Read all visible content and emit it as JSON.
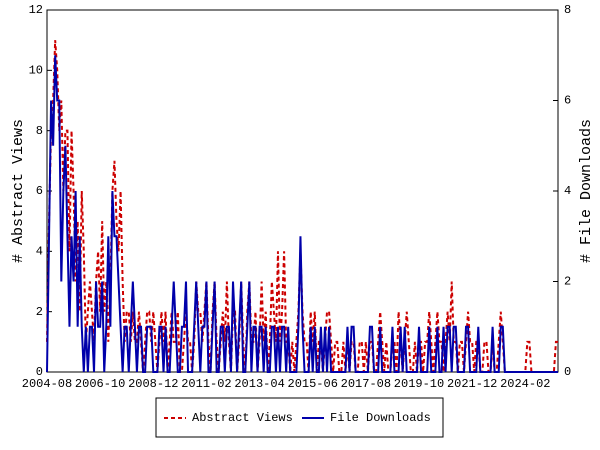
{
  "chart_data": {
    "type": "line",
    "y_label": "# Abstract Views",
    "y2_label": "# File Downloads",
    "ylim": [
      0,
      12
    ],
    "yticks": [
      0,
      2,
      4,
      6,
      8,
      10,
      12
    ],
    "y2lim": [
      0,
      8
    ],
    "y2ticks": [
      0,
      2,
      4,
      6,
      8
    ],
    "legend": "bottom",
    "categories": [
      "2004-08",
      null,
      null,
      null,
      null,
      null,
      null,
      null,
      null,
      null,
      null,
      null,
      null,
      null,
      null,
      null,
      null,
      null,
      null,
      null,
      null,
      null,
      null,
      null,
      null,
      null,
      "2006-10",
      null,
      null,
      null,
      null,
      null,
      null,
      null,
      null,
      null,
      null,
      null,
      null,
      null,
      null,
      null,
      null,
      null,
      null,
      null,
      null,
      null,
      null,
      null,
      null,
      null,
      "2008-12",
      null,
      null,
      null,
      null,
      null,
      null,
      null,
      null,
      null,
      null,
      null,
      null,
      null,
      null,
      null,
      null,
      null,
      null,
      null,
      null,
      null,
      null,
      null,
      null,
      null,
      "2011-02",
      null,
      null,
      null,
      null,
      null,
      null,
      null,
      null,
      null,
      null,
      null,
      null,
      null,
      null,
      null,
      null,
      null,
      null,
      null,
      null,
      null,
      null,
      null,
      null,
      null,
      "2013-04",
      null,
      null,
      null,
      null,
      null,
      null,
      null,
      null,
      null,
      null,
      null,
      null,
      null,
      null,
      null,
      null,
      null,
      null,
      null,
      null,
      null,
      null,
      null,
      null,
      null,
      "2015-06",
      null,
      null,
      null,
      null,
      null,
      null,
      null,
      null,
      null,
      null,
      null,
      null,
      null,
      null,
      null,
      null,
      null,
      null,
      null,
      null,
      null,
      null,
      null,
      null,
      null,
      "2017-08",
      null,
      null,
      null,
      null,
      null,
      null,
      null,
      null,
      null,
      null,
      null,
      null,
      null,
      null,
      null,
      null,
      null,
      null,
      null,
      null,
      null,
      null,
      null,
      null,
      null,
      "2019-10",
      null,
      null,
      null,
      null,
      null,
      null,
      null,
      null,
      null,
      null,
      null,
      null,
      null,
      null,
      null,
      null,
      null,
      null,
      null,
      null,
      null,
      null,
      null,
      null,
      null,
      "2021-12",
      null,
      null,
      null,
      null,
      null,
      null,
      null,
      null,
      null,
      null,
      null,
      null,
      null,
      null,
      null,
      null,
      null,
      null,
      null,
      null,
      null,
      null,
      null,
      null,
      null,
      "2024-02",
      null,
      null,
      null,
      null,
      null,
      null,
      null,
      null,
      null,
      null,
      null,
      null,
      null,
      null,
      null,
      null
    ],
    "series": [
      {
        "name": "Abstract Views",
        "color": "#cc0000",
        "dash": true,
        "values": [
          1,
          5,
          8,
          9,
          11,
          10,
          8,
          9,
          6,
          8,
          8,
          4,
          8,
          6,
          3,
          5,
          2,
          6,
          4,
          1,
          2,
          3,
          2,
          1,
          3,
          4,
          2,
          5,
          2,
          3,
          1,
          3,
          6,
          7,
          5,
          4,
          6,
          3,
          1,
          2,
          2,
          1,
          2,
          1,
          1,
          2,
          1,
          0,
          1,
          2,
          2,
          1,
          2,
          1,
          0,
          1,
          2,
          1,
          2,
          0,
          1,
          2,
          1,
          1,
          2,
          0,
          0,
          1,
          2,
          1,
          1,
          0,
          1,
          3,
          2,
          2,
          1,
          2,
          3,
          1,
          0,
          2,
          3,
          1,
          0,
          1,
          2,
          1,
          3,
          1,
          0,
          2,
          2,
          0,
          1,
          3,
          1,
          0,
          2,
          3,
          1,
          1,
          2,
          0,
          1,
          3,
          1,
          2,
          0,
          1,
          3,
          2,
          1,
          4,
          1,
          2,
          4,
          1,
          1,
          0,
          1,
          0,
          1,
          2,
          4,
          2,
          1,
          1,
          0,
          2,
          1,
          2,
          0,
          1,
          1,
          0,
          1,
          2,
          2,
          1,
          0,
          1,
          1,
          0,
          0,
          1,
          0,
          1,
          0,
          1,
          1,
          0,
          0,
          1,
          1,
          0,
          1,
          0,
          1,
          1,
          0,
          0,
          1,
          2,
          1,
          0,
          1,
          0,
          0,
          1,
          1,
          0,
          2,
          1,
          0,
          1,
          2,
          1,
          0,
          0,
          1,
          0,
          1,
          1,
          0,
          1,
          1,
          2,
          1,
          0,
          1,
          2,
          1,
          1,
          0,
          1,
          2,
          1,
          3,
          1,
          1,
          0,
          1,
          1,
          0,
          1,
          2,
          1,
          1,
          0,
          1,
          1,
          0,
          0,
          1,
          1,
          0,
          0,
          1,
          0,
          0,
          1,
          2,
          1,
          0,
          0,
          0,
          0,
          0,
          0,
          0,
          0,
          0,
          0,
          0,
          1,
          1,
          0,
          0,
          0,
          0,
          0,
          0,
          0,
          0,
          0,
          0,
          0,
          0,
          1,
          1
        ]
      },
      {
        "name": "File Downloads",
        "color": "#0000aa",
        "dash": false,
        "axis": "y2",
        "values": [
          0,
          3,
          6,
          5,
          7,
          6,
          6,
          2,
          4,
          5,
          3,
          1,
          3,
          2,
          4,
          1,
          3,
          1,
          0,
          1,
          0,
          1,
          1,
          0,
          2,
          1,
          1,
          2,
          0,
          1,
          3,
          1,
          4,
          3,
          3,
          2,
          1,
          0,
          1,
          1,
          0,
          1,
          2,
          1,
          0,
          1,
          1,
          0,
          0,
          1,
          1,
          1,
          0,
          0,
          0,
          1,
          1,
          0,
          1,
          0,
          0,
          1,
          2,
          1,
          0,
          0,
          1,
          1,
          2,
          0,
          0,
          0,
          1,
          2,
          1,
          0,
          1,
          1,
          2,
          0,
          0,
          1,
          2,
          0,
          0,
          1,
          1,
          0,
          1,
          1,
          0,
          2,
          1,
          0,
          1,
          2,
          0,
          0,
          1,
          2,
          0,
          1,
          1,
          0,
          1,
          1,
          0,
          1,
          0,
          0,
          1,
          1,
          0,
          1,
          0,
          1,
          1,
          0,
          1,
          0,
          0,
          0,
          0,
          1,
          3,
          1,
          0,
          0,
          0,
          1,
          0,
          1,
          0,
          0,
          1,
          0,
          1,
          0,
          1,
          0,
          0,
          0,
          0,
          0,
          0,
          0,
          0,
          1,
          0,
          1,
          1,
          0,
          0,
          0,
          0,
          0,
          0,
          0,
          1,
          1,
          0,
          0,
          0,
          1,
          0,
          0,
          0,
          0,
          0,
          1,
          0,
          0,
          0,
          1,
          0,
          1,
          0,
          0,
          0,
          0,
          0,
          0,
          1,
          0,
          0,
          0,
          0,
          1,
          0,
          0,
          0,
          1,
          0,
          0,
          1,
          0,
          1,
          1,
          0,
          1,
          1,
          0,
          0,
          0,
          0,
          1,
          1,
          0,
          0,
          0,
          0,
          1,
          0,
          0,
          0,
          0,
          0,
          0,
          1,
          0,
          0,
          0,
          1,
          1,
          0,
          0,
          0,
          0,
          0,
          0,
          0,
          0,
          0,
          0,
          0,
          0,
          0,
          0,
          0,
          0,
          0,
          0,
          0,
          0,
          0,
          0,
          0,
          0,
          0,
          0,
          0
        ]
      }
    ]
  }
}
